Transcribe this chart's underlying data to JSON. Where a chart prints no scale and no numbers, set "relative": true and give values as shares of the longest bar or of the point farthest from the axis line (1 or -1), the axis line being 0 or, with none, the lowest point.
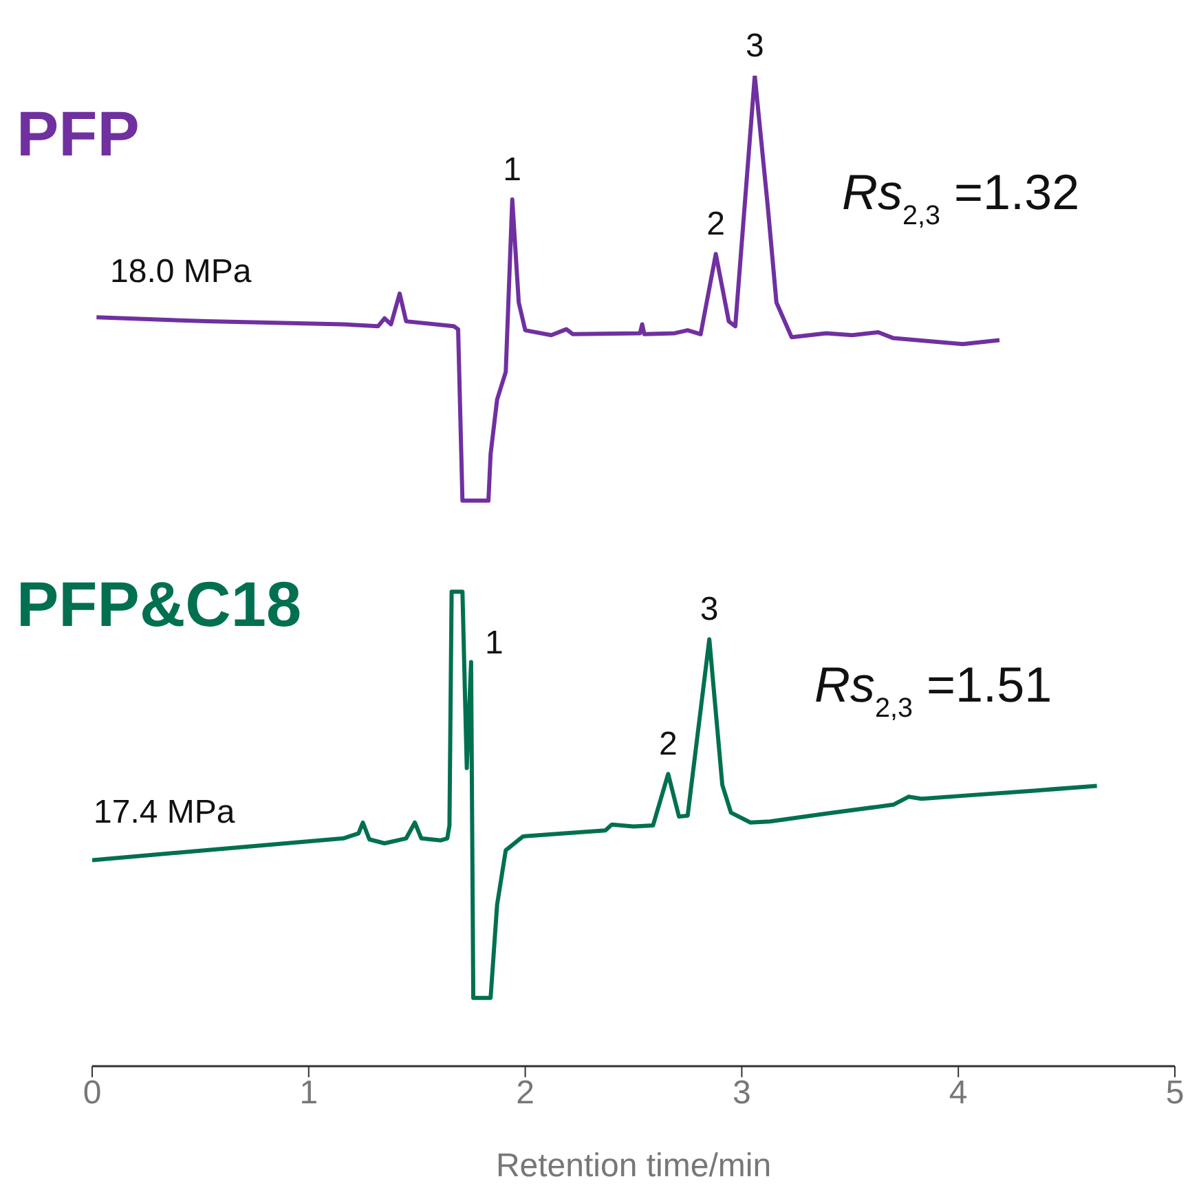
{
  "chart_data": {
    "type": "line",
    "relative": true,
    "xlabel": "Retention time/min",
    "xlim": [
      0,
      5
    ],
    "xticks": [
      0,
      1,
      2,
      3,
      4,
      5
    ],
    "marker": "none",
    "line_style": "solid",
    "series": [
      {
        "name": "PFP",
        "color": "#7030a0",
        "x": [
          0.02,
          0.53,
          1.16,
          1.32,
          1.35,
          1.38,
          1.42,
          1.45,
          1.67,
          1.69,
          1.71,
          1.83,
          1.84,
          1.87,
          1.91,
          1.94,
          1.97,
          2.0,
          2.12,
          2.19,
          2.22,
          2.53,
          2.54,
          2.55,
          2.69,
          2.75,
          2.81,
          2.88,
          2.94,
          2.97,
          3.06,
          3.12,
          3.16,
          3.23,
          3.39,
          3.51,
          3.63,
          3.7,
          4.02,
          4.19
        ],
        "values": [
          0.756,
          0.752,
          0.749,
          0.747,
          0.755,
          0.749,
          0.78,
          0.752,
          0.747,
          0.744,
          0.571,
          0.571,
          0.618,
          0.673,
          0.701,
          0.875,
          0.771,
          0.743,
          0.738,
          0.744,
          0.739,
          0.74,
          0.749,
          0.739,
          0.74,
          0.743,
          0.739,
          0.82,
          0.752,
          0.747,
          1.0,
          0.868,
          0.771,
          0.736,
          0.74,
          0.738,
          0.741,
          0.735,
          0.729,
          0.733
        ]
      },
      {
        "name": "PFP&C18",
        "color": "#007050",
        "x": [
          0,
          0.84,
          1.16,
          1.23,
          1.25,
          1.28,
          1.35,
          1.45,
          1.49,
          1.52,
          1.61,
          1.64,
          1.65,
          1.66,
          1.71,
          1.73,
          1.75,
          1.76,
          1.84,
          1.87,
          1.91,
          1.99,
          2.05,
          2.18,
          2.37,
          2.4,
          2.5,
          2.59,
          2.66,
          2.71,
          2.75,
          2.85,
          2.91,
          2.95,
          3.04,
          3.13,
          3.39,
          3.7,
          3.77,
          3.83,
          4.02,
          4.34,
          4.64
        ],
        "values": [
          0.208,
          0.224,
          0.23,
          0.235,
          0.246,
          0.229,
          0.225,
          0.23,
          0.246,
          0.23,
          0.228,
          0.23,
          0.243,
          0.479,
          0.479,
          0.301,
          0.408,
          0.069,
          0.069,
          0.163,
          0.218,
          0.232,
          0.233,
          0.235,
          0.238,
          0.244,
          0.242,
          0.243,
          0.295,
          0.252,
          0.253,
          0.431,
          0.284,
          0.256,
          0.246,
          0.247,
          0.255,
          0.264,
          0.272,
          0.27,
          0.273,
          0.278,
          0.283
        ]
      }
    ],
    "annotations": [
      "18.0 MPa",
      "Rs$_{2,3}$ =1.32",
      "17.4 MPa",
      "Rs$_{2,3}$ =1.51",
      {
        "text": "1",
        "x": 1.94,
        "y": 0.875
      },
      {
        "text": "2",
        "x": 2.88,
        "y": 0.82
      },
      {
        "text": "3",
        "x": 3.06,
        "y": 1.0
      },
      {
        "text": "1",
        "x": 1.75,
        "y": 0.408
      },
      {
        "text": "2",
        "x": 2.66,
        "y": 0.295
      },
      {
        "text": "3",
        "x": 2.85,
        "y": 0.431
      }
    ]
  }
}
